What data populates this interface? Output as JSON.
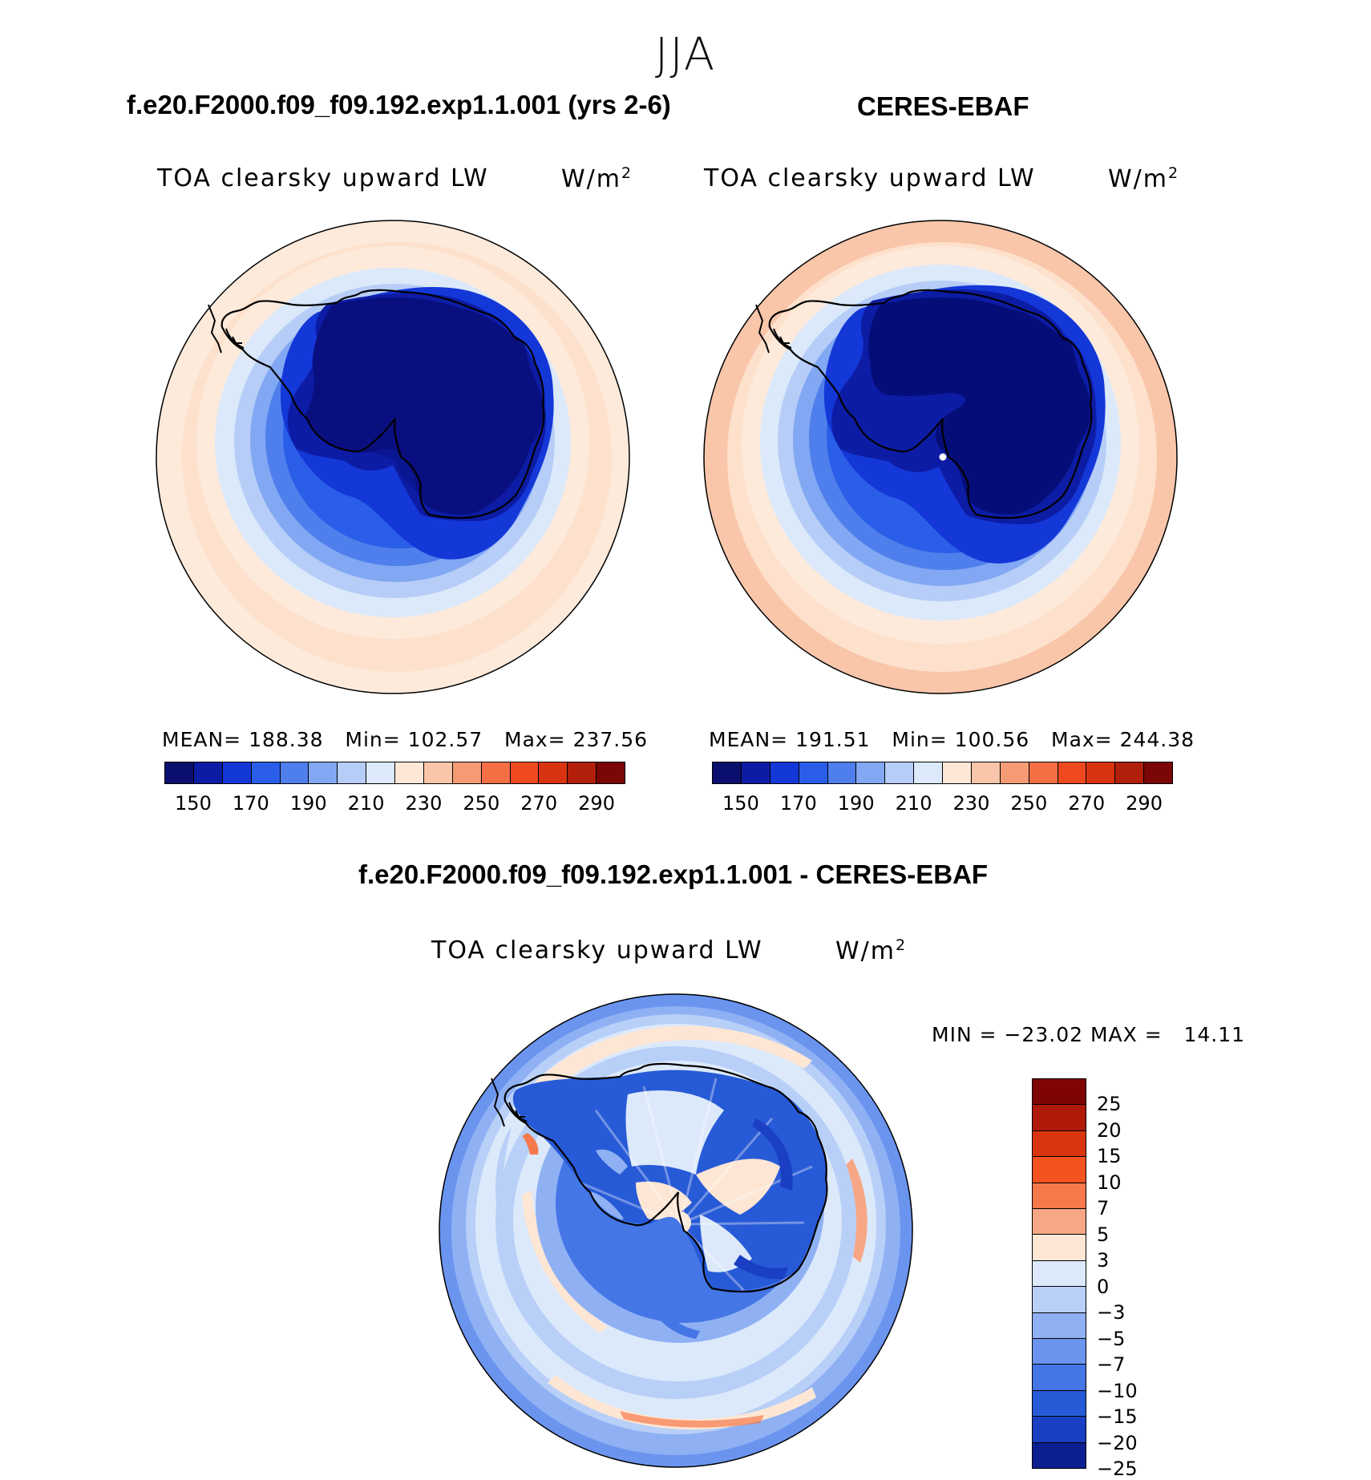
{
  "season": "JJA",
  "panels": [
    {
      "title": "f.e20.F2000.f09_f09.192.exp1.1.001 (yrs 2-6)",
      "variable": "TOA clearsky upward LW",
      "units_base": "W/m",
      "units_exp": "2",
      "mean_label": "MEAN=",
      "mean_value": "188.38",
      "min_label": "Min=",
      "min_value": "102.57",
      "max_label": "Max=",
      "max_value": "237.56",
      "map_region": "Antarctica polar stereographic",
      "polar_zone_color": "#0a0f80"
    },
    {
      "title": "CERES-EBAF",
      "variable": "TOA clearsky upward LW",
      "units_base": "W/m",
      "units_exp": "2",
      "mean_label": "MEAN=",
      "mean_value": "191.51",
      "min_label": "Min=",
      "min_value": "100.56",
      "max_label": "Max=",
      "max_value": "244.38",
      "map_region": "Antarctica polar stereographic",
      "polar_zone_color": "#050e78"
    }
  ],
  "main_colorbar": {
    "colors": [
      "#0a0f6e",
      "#0d1ca4",
      "#1437d8",
      "#2b5ee8",
      "#4f7fec",
      "#82a8f3",
      "#b6cdf7",
      "#dbe9fa",
      "#fde8d8",
      "#f9c6aa",
      "#f59b75",
      "#f56f45",
      "#f0491f",
      "#d93412",
      "#b21f0a",
      "#7a0606"
    ],
    "ticks": [
      "150",
      "170",
      "190",
      "210",
      "230",
      "250",
      "270",
      "290"
    ]
  },
  "diff_panel": {
    "title": "f.e20.F2000.f09_f09.192.exp1.1.001 - CERES-EBAF",
    "variable": "TOA clearsky upward LW",
    "units_base": "W/m",
    "units_exp": "2",
    "minmax": "MIN = −23.02 MAX =   14.11",
    "colorbar": {
      "colors": [
        "#7f0505",
        "#b01a0a",
        "#d9360f",
        "#f4521f",
        "#f5794b",
        "#f7a786",
        "#fde6d4",
        "#dce9fb",
        "#b8d0f8",
        "#8fb1f4",
        "#6b94ef",
        "#4576e6",
        "#275ad6",
        "#1a3fc2",
        "#0c1f90"
      ],
      "ticks": [
        "25",
        "20",
        "15",
        "10",
        "7",
        "5",
        "3",
        "0",
        "−3",
        "−5",
        "−7",
        "−10",
        "−15",
        "−20",
        "−25"
      ]
    }
  }
}
